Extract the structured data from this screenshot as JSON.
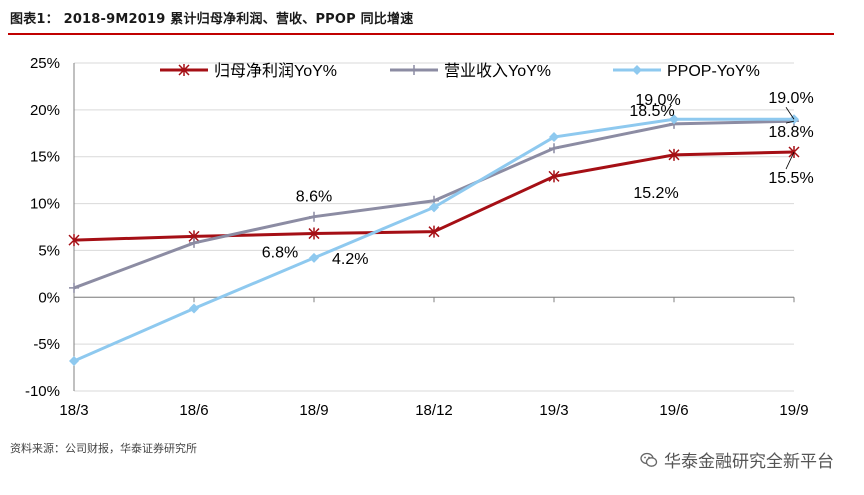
{
  "figure": {
    "title": "图表1：  2018-9M2019 累计归母净利润、营收、PPOP 同比增速",
    "source": "资料来源：公司财报，华泰证券研究所",
    "watermark": "华泰金融研究全新平台",
    "watermark_icon": "wechat-icon"
  },
  "chart_data": {
    "type": "line",
    "categories": [
      "18/3",
      "18/6",
      "18/9",
      "18/12",
      "19/3",
      "19/6",
      "19/9"
    ],
    "ylim": [
      -10,
      25
    ],
    "yticks": [
      -10,
      -5,
      0,
      5,
      10,
      15,
      20,
      25
    ],
    "ytick_labels": [
      "-10%",
      "-5%",
      "0%",
      "5%",
      "10%",
      "15%",
      "20%",
      "25%"
    ],
    "grid": "horizontal",
    "legend_position": "top",
    "series": [
      {
        "name": "归母净利润YoY%",
        "color": "#a50f15",
        "marker": "asterisk",
        "values": [
          6.1,
          6.5,
          6.8,
          7.0,
          12.9,
          15.2,
          15.5
        ]
      },
      {
        "name": "营业收入YoY%",
        "color": "#8c8ca3",
        "marker": "plus",
        "values": [
          1.0,
          5.8,
          8.6,
          10.3,
          15.9,
          18.5,
          18.8
        ]
      },
      {
        "name": "PPOP-YoY%",
        "color": "#8ec9ef",
        "marker": "diamond",
        "values": [
          -6.8,
          -1.2,
          4.2,
          9.6,
          17.1,
          19.0,
          19.0
        ]
      }
    ],
    "data_labels": [
      {
        "series": 1,
        "index": 2,
        "text": "8.6%",
        "pos": "above"
      },
      {
        "series": 0,
        "index": 2,
        "text": "6.8%",
        "pos": "below-left"
      },
      {
        "series": 2,
        "index": 2,
        "text": "4.2%",
        "pos": "right"
      },
      {
        "series": 2,
        "index": 5,
        "text": "19.0%",
        "pos": "above"
      },
      {
        "series": 1,
        "index": 5,
        "text": "18.5%",
        "pos": "above"
      },
      {
        "series": 0,
        "index": 5,
        "text": "15.2%",
        "pos": "below"
      },
      {
        "series": 2,
        "index": 6,
        "text": "19.0%",
        "pos": "above"
      },
      {
        "series": 1,
        "index": 6,
        "text": "18.8%",
        "pos": "below"
      },
      {
        "series": 0,
        "index": 6,
        "text": "15.5%",
        "pos": "below"
      }
    ]
  }
}
